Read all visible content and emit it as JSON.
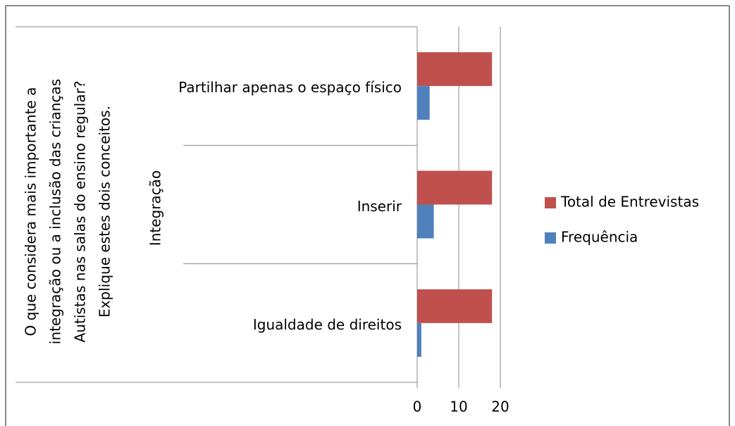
{
  "chart_data": {
    "type": "bar",
    "orientation": "horizontal",
    "question_lines": [
      "O que considera mais importante a",
      "integração ou a inclusão das crianças",
      "Autistas nas salas do ensino regular?",
      "Explique estes dois conceitos."
    ],
    "group": "Integração",
    "categories": [
      "Partilhar apenas  o espaço físico",
      "Inserir",
      "Igualdade de direitos"
    ],
    "series": [
      {
        "name": "Total de Entrevistas",
        "color": "#c0504d",
        "values": [
          18,
          18,
          18
        ]
      },
      {
        "name": "Frequência",
        "color": "#4f81bd",
        "values": [
          3,
          4,
          1
        ]
      }
    ],
    "xlim": [
      0,
      20
    ],
    "xticks": [
      0,
      10,
      20
    ],
    "grid": true,
    "legend": "right"
  }
}
